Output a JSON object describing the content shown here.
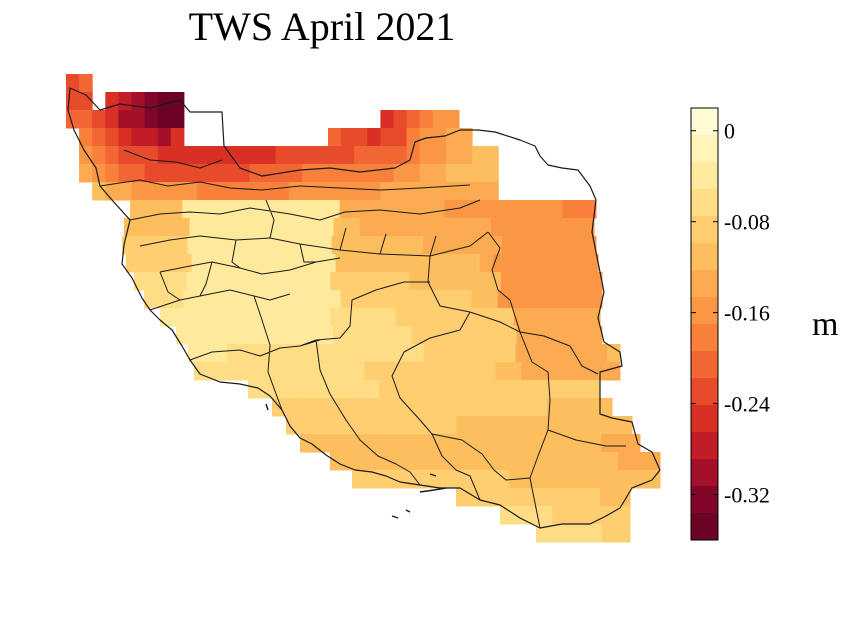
{
  "title": "TWS April 2021",
  "unit": "m",
  "colorbar": {
    "min": -0.36,
    "max": 0.02,
    "ticks": [
      {
        "value": 0,
        "label": "0"
      },
      {
        "value": -0.08,
        "label": "-0.08"
      },
      {
        "value": -0.16,
        "label": "-0.16"
      },
      {
        "value": -0.24,
        "label": "-0.24"
      },
      {
        "value": -0.32,
        "label": "-0.32"
      }
    ],
    "colors": [
      "#fffbd5",
      "#fff3b8",
      "#ffe99c",
      "#fedd85",
      "#fece71",
      "#fdbe5e",
      "#fcab50",
      "#fb9744",
      "#f8803b",
      "#f26633",
      "#e84b2c",
      "#d93026",
      "#c21c27",
      "#a40f2a",
      "#82062a",
      "#6b0424"
    ]
  },
  "chart_data": {
    "type": "heatmap",
    "title": "TWS April 2021",
    "colorbar_label": "m",
    "value_range": [
      -0.36,
      0.02
    ],
    "grid_note": "values per map grid cell, rows top to bottom, cols left to right; null = no data",
    "values": [
      [
        -0.22,
        -0.2,
        null,
        null,
        null,
        null,
        null,
        null,
        null,
        null,
        null,
        null,
        null,
        null,
        null,
        null,
        null,
        null,
        null,
        null,
        null,
        null,
        null,
        null,
        null,
        null,
        null,
        null,
        null,
        null,
        null,
        null,
        null,
        null,
        null,
        null,
        null,
        null,
        null,
        null,
        null,
        null,
        null,
        null,
        null
      ],
      [
        -0.24,
        -0.22,
        null,
        -0.26,
        -0.28,
        -0.3,
        -0.32,
        -0.35,
        -0.36,
        null,
        null,
        null,
        null,
        null,
        null,
        null,
        null,
        null,
        null,
        null,
        null,
        null,
        null,
        null,
        null,
        null,
        null,
        null,
        null,
        null,
        null,
        null,
        null,
        null,
        null,
        null,
        null,
        null,
        null,
        null,
        null,
        null,
        null,
        null,
        null
      ],
      [
        -0.2,
        -0.21,
        -0.24,
        -0.26,
        -0.29,
        -0.3,
        -0.33,
        -0.34,
        -0.35,
        null,
        null,
        null,
        null,
        null,
        null,
        null,
        null,
        null,
        null,
        null,
        null,
        null,
        null,
        null,
        -0.25,
        -0.24,
        -0.2,
        -0.18,
        -0.15,
        -0.15,
        null,
        null,
        null,
        null,
        null,
        null,
        null,
        null,
        null,
        null,
        null,
        null,
        null,
        null,
        null
      ],
      [
        null,
        -0.18,
        -0.2,
        -0.23,
        -0.26,
        -0.27,
        -0.28,
        -0.29,
        -0.25,
        null,
        null,
        null,
        null,
        null,
        null,
        null,
        null,
        null,
        null,
        null,
        -0.21,
        -0.22,
        -0.24,
        -0.25,
        -0.24,
        -0.22,
        -0.19,
        -0.16,
        -0.15,
        -0.14,
        -0.13,
        null,
        null,
        null,
        null,
        null,
        null,
        null,
        null,
        null,
        null,
        null,
        null,
        null,
        null
      ],
      [
        null,
        -0.15,
        -0.17,
        -0.2,
        -0.22,
        -0.24,
        -0.24,
        -0.25,
        -0.25,
        -0.25,
        -0.26,
        -0.26,
        -0.26,
        -0.26,
        -0.25,
        -0.25,
        -0.24,
        -0.24,
        -0.24,
        -0.23,
        -0.23,
        -0.22,
        -0.21,
        -0.21,
        -0.21,
        -0.2,
        -0.18,
        -0.16,
        -0.15,
        -0.14,
        -0.13,
        -0.12,
        -0.12,
        null,
        null,
        null,
        null,
        null,
        null,
        null,
        null,
        null,
        null,
        null,
        null
      ],
      [
        null,
        -0.14,
        -0.16,
        -0.18,
        -0.2,
        -0.21,
        -0.22,
        -0.22,
        -0.22,
        -0.22,
        -0.22,
        -0.22,
        -0.22,
        -0.22,
        -0.21,
        -0.21,
        -0.2,
        -0.2,
        -0.19,
        -0.19,
        -0.19,
        -0.18,
        -0.17,
        -0.17,
        -0.17,
        -0.16,
        -0.15,
        -0.14,
        -0.13,
        -0.12,
        -0.12,
        -0.12,
        -0.12,
        null,
        null,
        null,
        null,
        null,
        null,
        null,
        null,
        null,
        null,
        null,
        null
      ],
      [
        null,
        null,
        -0.12,
        -0.13,
        -0.14,
        -0.15,
        -0.15,
        -0.16,
        -0.16,
        -0.16,
        -0.17,
        -0.17,
        -0.17,
        -0.17,
        -0.17,
        -0.17,
        -0.17,
        -0.16,
        -0.16,
        -0.16,
        -0.15,
        -0.15,
        -0.15,
        -0.15,
        -0.14,
        -0.14,
        -0.14,
        -0.13,
        -0.13,
        -0.13,
        -0.13,
        -0.13,
        -0.13,
        null,
        null,
        null,
        null,
        null,
        null,
        null,
        null,
        null,
        null,
        null,
        null
      ]
    ]
  }
}
